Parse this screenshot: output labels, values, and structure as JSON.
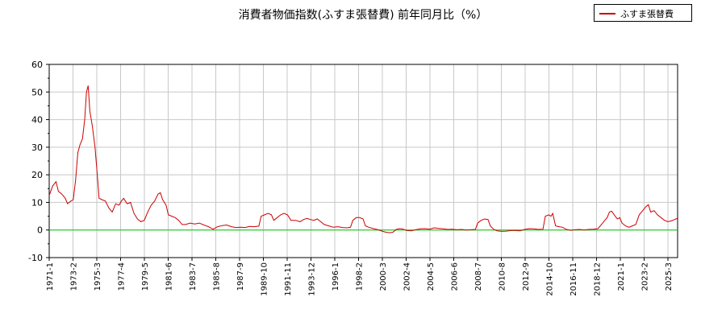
{
  "chart_data": {
    "type": "line",
    "title": "消費者物価指数(ふすま張替費) 前年同月比（%）",
    "ylim": [
      -10,
      60
    ],
    "yticks": [
      -10,
      0,
      10,
      20,
      30,
      40,
      50,
      60
    ],
    "xlim": [
      1971.0,
      2025.85
    ],
    "xtick_labels": [
      "1971-1",
      "1973-2",
      "1975-3",
      "1977-4",
      "1979-5",
      "1981-6",
      "1983-7",
      "1985-8",
      "1987-9",
      "1989-10",
      "1991-11",
      "1993-12",
      "1996-1",
      "1998-2",
      "2000-3",
      "2002-4",
      "2004-5",
      "2006-6",
      "2008-7",
      "2010-8",
      "2012-9",
      "2014-10",
      "2016-11",
      "2018-12",
      "2021-1",
      "2023-2",
      "2025-3"
    ],
    "grid": true,
    "legend_position": "top-right",
    "reference_line": {
      "y": 0,
      "color": "#00cc00"
    },
    "series": [
      {
        "name": "ふすま張替費",
        "color": "#cc0000",
        "points": [
          [
            1971.0,
            12.5
          ],
          [
            1971.3,
            16
          ],
          [
            1971.6,
            17.5
          ],
          [
            1971.8,
            14
          ],
          [
            1972.1,
            13
          ],
          [
            1972.4,
            11.5
          ],
          [
            1972.6,
            9.5
          ],
          [
            1972.9,
            10.5
          ],
          [
            1973.1,
            11.0
          ],
          [
            1973.3,
            18
          ],
          [
            1973.5,
            28
          ],
          [
            1973.7,
            31
          ],
          [
            1973.9,
            33
          ],
          [
            1974.1,
            40
          ],
          [
            1974.25,
            50
          ],
          [
            1974.4,
            52.3
          ],
          [
            1974.55,
            43
          ],
          [
            1974.75,
            38
          ],
          [
            1975.0,
            30
          ],
          [
            1975.2,
            20
          ],
          [
            1975.35,
            11.5
          ],
          [
            1975.6,
            11.0
          ],
          [
            1975.9,
            10.5
          ],
          [
            1976.2,
            8
          ],
          [
            1976.5,
            6.5
          ],
          [
            1976.8,
            9.5
          ],
          [
            1977.1,
            9.0
          ],
          [
            1977.3,
            10.5
          ],
          [
            1977.5,
            11.5
          ],
          [
            1977.8,
            9.5
          ],
          [
            1978.1,
            10.0
          ],
          [
            1978.4,
            6.0
          ],
          [
            1978.7,
            4.0
          ],
          [
            1979.0,
            3.0
          ],
          [
            1979.3,
            3.5
          ],
          [
            1979.6,
            6.5
          ],
          [
            1979.9,
            9.0
          ],
          [
            1980.2,
            10.5
          ],
          [
            1980.5,
            13.0
          ],
          [
            1980.7,
            13.5
          ],
          [
            1980.9,
            11.0
          ],
          [
            1981.2,
            9.0
          ],
          [
            1981.4,
            5.5
          ],
          [
            1981.7,
            5.0
          ],
          [
            1982.0,
            4.5
          ],
          [
            1982.3,
            3.5
          ],
          [
            1982.6,
            2.0
          ],
          [
            1982.9,
            2.0
          ],
          [
            1983.3,
            2.5
          ],
          [
            1983.7,
            2.2
          ],
          [
            1984.1,
            2.5
          ],
          [
            1984.5,
            1.8
          ],
          [
            1984.9,
            1.2
          ],
          [
            1985.3,
            0.3
          ],
          [
            1985.7,
            1.2
          ],
          [
            1986.1,
            1.6
          ],
          [
            1986.5,
            1.8
          ],
          [
            1986.9,
            1.2
          ],
          [
            1987.3,
            0.9
          ],
          [
            1987.7,
            1.0
          ],
          [
            1988.1,
            0.9
          ],
          [
            1988.5,
            1.3
          ],
          [
            1988.9,
            1.2
          ],
          [
            1989.3,
            1.4
          ],
          [
            1989.5,
            5.0
          ],
          [
            1989.8,
            5.5
          ],
          [
            1990.1,
            6.0
          ],
          [
            1990.4,
            5.5
          ],
          [
            1990.6,
            3.5
          ],
          [
            1990.9,
            4.5
          ],
          [
            1991.2,
            5.5
          ],
          [
            1991.5,
            6.0
          ],
          [
            1991.8,
            5.5
          ],
          [
            1992.1,
            3.5
          ],
          [
            1992.5,
            3.5
          ],
          [
            1992.9,
            3.0
          ],
          [
            1993.2,
            3.8
          ],
          [
            1993.5,
            4.2
          ],
          [
            1993.8,
            3.8
          ],
          [
            1994.1,
            3.5
          ],
          [
            1994.4,
            4.0
          ],
          [
            1994.7,
            3.0
          ],
          [
            1995.0,
            2.0
          ],
          [
            1995.4,
            1.5
          ],
          [
            1995.8,
            1.0
          ],
          [
            1996.2,
            1.2
          ],
          [
            1996.6,
            0.9
          ],
          [
            1997.0,
            0.8
          ],
          [
            1997.3,
            1.0
          ],
          [
            1997.5,
            3.5
          ],
          [
            1997.8,
            4.5
          ],
          [
            1998.1,
            4.5
          ],
          [
            1998.4,
            4.0
          ],
          [
            1998.6,
            1.5
          ],
          [
            1998.9,
            1.0
          ],
          [
            1999.3,
            0.5
          ],
          [
            1999.7,
            0.1
          ],
          [
            2000.1,
            -0.5
          ],
          [
            2000.4,
            -0.8
          ],
          [
            2000.7,
            -1.0
          ],
          [
            2001.0,
            -0.8
          ],
          [
            2001.3,
            0.2
          ],
          [
            2001.6,
            0.5
          ],
          [
            2001.9,
            0.3
          ],
          [
            2002.2,
            -0.2
          ],
          [
            2002.6,
            -0.3
          ],
          [
            2003.0,
            0.1
          ],
          [
            2003.4,
            0.4
          ],
          [
            2003.8,
            0.5
          ],
          [
            2004.2,
            0.3
          ],
          [
            2004.6,
            0.8
          ],
          [
            2005.0,
            0.6
          ],
          [
            2005.4,
            0.4
          ],
          [
            2005.8,
            0.2
          ],
          [
            2006.2,
            0.3
          ],
          [
            2006.6,
            0.1
          ],
          [
            2007.0,
            0.2
          ],
          [
            2007.4,
            0.0
          ],
          [
            2007.8,
            0.1
          ],
          [
            2008.2,
            0.2
          ],
          [
            2008.4,
            2.5
          ],
          [
            2008.7,
            3.5
          ],
          [
            2009.0,
            4.0
          ],
          [
            2009.3,
            3.8
          ],
          [
            2009.5,
            1.5
          ],
          [
            2009.8,
            0.2
          ],
          [
            2010.1,
            -0.3
          ],
          [
            2010.5,
            -0.5
          ],
          [
            2010.9,
            -0.4
          ],
          [
            2011.3,
            -0.2
          ],
          [
            2011.7,
            -0.2
          ],
          [
            2012.1,
            -0.3
          ],
          [
            2012.5,
            0.2
          ],
          [
            2012.9,
            0.5
          ],
          [
            2013.3,
            0.4
          ],
          [
            2013.7,
            0.2
          ],
          [
            2014.1,
            0.3
          ],
          [
            2014.3,
            5.0
          ],
          [
            2014.6,
            5.5
          ],
          [
            2014.8,
            5.0
          ],
          [
            2014.95,
            6.0
          ],
          [
            2015.2,
            1.5
          ],
          [
            2015.5,
            1.2
          ],
          [
            2015.8,
            1.0
          ],
          [
            2016.1,
            0.3
          ],
          [
            2016.5,
            -0.1
          ],
          [
            2016.9,
            0.1
          ],
          [
            2017.3,
            0.2
          ],
          [
            2017.7,
            0.0
          ],
          [
            2018.1,
            0.2
          ],
          [
            2018.5,
            0.3
          ],
          [
            2018.9,
            0.5
          ],
          [
            2019.2,
            2.0
          ],
          [
            2019.5,
            3.5
          ],
          [
            2019.7,
            4.5
          ],
          [
            2019.9,
            6.5
          ],
          [
            2020.1,
            6.8
          ],
          [
            2020.4,
            5.0
          ],
          [
            2020.6,
            4.0
          ],
          [
            2020.8,
            4.5
          ],
          [
            2021.0,
            2.5
          ],
          [
            2021.3,
            1.5
          ],
          [
            2021.6,
            1.0
          ],
          [
            2021.9,
            1.5
          ],
          [
            2022.2,
            2.0
          ],
          [
            2022.5,
            5.5
          ],
          [
            2022.8,
            7.0
          ],
          [
            2023.1,
            8.5
          ],
          [
            2023.3,
            9.2
          ],
          [
            2023.5,
            6.5
          ],
          [
            2023.8,
            7.0
          ],
          [
            2024.1,
            5.5
          ],
          [
            2024.4,
            4.5
          ],
          [
            2024.7,
            3.5
          ],
          [
            2025.0,
            3.0
          ],
          [
            2025.3,
            3.3
          ],
          [
            2025.6,
            3.8
          ],
          [
            2025.85,
            4.3
          ]
        ]
      }
    ]
  }
}
